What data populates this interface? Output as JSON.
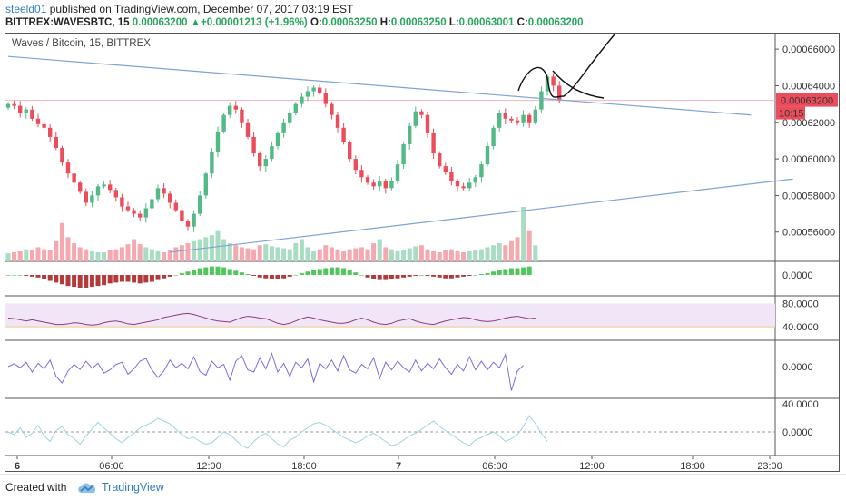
{
  "header": {
    "author": "steeld01",
    "published_text": " published on TradingView.com, December 07, 2017 03:19 EST",
    "symbol": "BITTREX:WAVESBTC, 15",
    "last_price": "0.00063200",
    "change": "+0.00001213 (+1.96%)",
    "o_label": "O:",
    "o_value": "0.00063250",
    "h_label": "H:",
    "h_value": "0.00063250",
    "l_label": "L:",
    "l_value": "0.00063001",
    "c_label": "C:",
    "c_value": "0.00063200"
  },
  "chart_data": {
    "type": "line",
    "title": "Waves / Bitcoin, 15, BITTREX",
    "price_axis": {
      "ticks": [
        "0.00066000",
        "0.00064000",
        "0.00062000",
        "0.00060000",
        "0.00058000",
        "0.00056000"
      ],
      "ylim": [
        0.000544,
        0.000669
      ],
      "last_price_label": "0.00063200",
      "countdown_label": "10:15"
    },
    "time_axis": {
      "ticks": [
        "6",
        "06:00",
        "12:00",
        "18:00",
        "7",
        "06:00",
        "12:00",
        "18:00",
        "23:00"
      ],
      "bold_ticks": [
        "6",
        "7"
      ]
    },
    "close_series": [
      0.00063,
      0.000629,
      0.000625,
      0.000627,
      0.000622,
      0.000619,
      0.000617,
      0.000612,
      0.000606,
      0.000598,
      0.000592,
      0.000587,
      0.000582,
      0.000576,
      0.00058,
      0.000585,
      0.000586,
      0.000583,
      0.000579,
      0.000574,
      0.000572,
      0.00057,
      0.000568,
      0.000573,
      0.000578,
      0.000584,
      0.000581,
      0.000576,
      0.000572,
      0.000566,
      0.000563,
      0.00057,
      0.00058,
      0.000592,
      0.000604,
      0.000615,
      0.000624,
      0.000629,
      0.000627,
      0.00062,
      0.000612,
      0.000603,
      0.000596,
      0.0006,
      0.000607,
      0.000614,
      0.00062,
      0.000625,
      0.00063,
      0.000634,
      0.000637,
      0.000639,
      0.000636,
      0.00063,
      0.000624,
      0.000617,
      0.000609,
      0.0006,
      0.000594,
      0.00059,
      0.000587,
      0.000585,
      0.000588,
      0.000584,
      0.000588,
      0.000597,
      0.000608,
      0.000618,
      0.000626,
      0.000624,
      0.000614,
      0.000603,
      0.000596,
      0.000593,
      0.000588,
      0.000585,
      0.000584,
      0.000587,
      0.00059,
      0.000597,
      0.000607,
      0.000617,
      0.000625,
      0.000622,
      0.000621,
      0.00062,
      0.000624,
      0.00062,
      0.000627,
      0.000637,
      0.000645,
      0.00064,
      0.000632
    ],
    "trendlines": [
      {
        "name": "upper",
        "from": [
          0,
          0.000656
        ],
        "to": [
          124,
          0.000624
        ]
      },
      {
        "name": "lower",
        "from": [
          27,
          0.000549
        ],
        "to": [
          131,
          0.000589
        ]
      }
    ],
    "volume": [
      8,
      9,
      10,
      12,
      11,
      14,
      12,
      11,
      20,
      38,
      24,
      18,
      14,
      12,
      10,
      9,
      9,
      11,
      12,
      14,
      17,
      22,
      17,
      14,
      12,
      10,
      9,
      11,
      14,
      16,
      18,
      20,
      22,
      24,
      26,
      30,
      22,
      18,
      16,
      14,
      13,
      12,
      16,
      17,
      15,
      14,
      13,
      12,
      18,
      22,
      14,
      10,
      12,
      16,
      14,
      12,
      10,
      12,
      13,
      14,
      12,
      18,
      22,
      14,
      12,
      10,
      11,
      13,
      15,
      16,
      12,
      10,
      9,
      11,
      12,
      10,
      9,
      10,
      11,
      12,
      14,
      16,
      18,
      16,
      20,
      24,
      54,
      30,
      16
    ],
    "macd": [
      0,
      0,
      0,
      -1,
      -2,
      -3,
      -5,
      -7,
      -9,
      -11,
      -13,
      -14,
      -15,
      -15,
      -14,
      -13,
      -12,
      -10,
      -9,
      -8,
      -8,
      -9,
      -10,
      -9,
      -8,
      -6,
      -4,
      -2,
      0,
      2,
      4,
      6,
      8,
      9,
      10,
      10,
      9,
      7,
      5,
      3,
      1,
      -1,
      -3,
      -4,
      -5,
      -5,
      -4,
      -2,
      0,
      2,
      4,
      6,
      7,
      8,
      9,
      9,
      8,
      6,
      3,
      0,
      -3,
      -5,
      -6,
      -6,
      -5,
      -4,
      -3,
      -2,
      -1,
      0,
      -1,
      -2,
      -3,
      -4,
      -4,
      -3,
      -2,
      -1,
      0,
      1,
      2,
      4,
      6,
      7,
      8,
      8,
      9,
      10
    ],
    "rsi": [
      55,
      54,
      52,
      50,
      52,
      50,
      48,
      46,
      44,
      44,
      45,
      47,
      46,
      44,
      43,
      44,
      47,
      49,
      50,
      48,
      45,
      44,
      46,
      48,
      50,
      52,
      56,
      58,
      60,
      62,
      63,
      61,
      58,
      55,
      52,
      50,
      49,
      48,
      52,
      56,
      58,
      57,
      55,
      54,
      50,
      46,
      44,
      46,
      50,
      54,
      57,
      55,
      52,
      50,
      48,
      46,
      46,
      48,
      52,
      55,
      52,
      48,
      45,
      44,
      46,
      50,
      52,
      54,
      50,
      47,
      45,
      44,
      47,
      50,
      52,
      54,
      56,
      55,
      52,
      50,
      49,
      50,
      52,
      55,
      57,
      58,
      56,
      54,
      55
    ],
    "rsi_levels": [
      80,
      40
    ],
    "rsi_ticks": [
      "80.0000",
      "40.0000"
    ],
    "osc3": [
      0,
      5,
      -2,
      8,
      -10,
      6,
      -4,
      12,
      -18,
      -30,
      -8,
      4,
      -5,
      10,
      -3,
      6,
      -12,
      -6,
      4,
      8,
      -14,
      -4,
      10,
      15,
      -6,
      -20,
      -8,
      12,
      -2,
      6,
      -4,
      18,
      -9,
      -16,
      10,
      -2,
      4,
      -25,
      10,
      20,
      -6,
      -10,
      16,
      -4,
      24,
      -10,
      6,
      -18,
      8,
      -2,
      14,
      -28,
      6,
      -4,
      12,
      -8,
      20,
      -6,
      -12,
      4,
      -4,
      16,
      -22,
      8,
      -6,
      10,
      -2,
      -10,
      12,
      -8,
      6,
      -4,
      14,
      -2,
      -14,
      4,
      -8,
      18,
      -6,
      10,
      -6,
      8,
      -2,
      22,
      -44,
      -8,
      2
    ],
    "osc4": [
      0,
      -4,
      6,
      -8,
      -2,
      10,
      -6,
      -14,
      2,
      8,
      -4,
      -10,
      -18,
      -6,
      4,
      14,
      6,
      -2,
      -10,
      -16,
      -8,
      -2,
      6,
      10,
      14,
      20,
      16,
      12,
      4,
      -4,
      -10,
      -8,
      -14,
      -18,
      -16,
      -8,
      0,
      -4,
      -12,
      -20,
      -24,
      -14,
      -6,
      -2,
      -10,
      -18,
      -22,
      -12,
      -8,
      0,
      6,
      12,
      14,
      10,
      4,
      -2,
      -8,
      -12,
      -16,
      -12,
      -6,
      -2,
      -8,
      -14,
      -20,
      -18,
      -12,
      -6,
      -2,
      4,
      10,
      16,
      8,
      2,
      -4,
      -10,
      -16,
      -20,
      -12,
      -8,
      -4,
      0,
      -6,
      -14,
      -10,
      -4,
      8,
      24,
      12,
      -2,
      -14
    ],
    "indicator_zero_label": "0.0000",
    "osc4_tick": "40.0000",
    "colors": {
      "up": "#53b987",
      "down": "#eb4d5c",
      "trendline": "#7fa3d6",
      "rsi_line": "#8c3b7a",
      "rsi_band": "#f1e6f8",
      "osc3": "#7a6fe0",
      "osc4": "#9fd3dc",
      "price_label_bg": "#eb4d5c"
    }
  },
  "footer": {
    "created_with": "Created with",
    "brand": "TradingView"
  }
}
